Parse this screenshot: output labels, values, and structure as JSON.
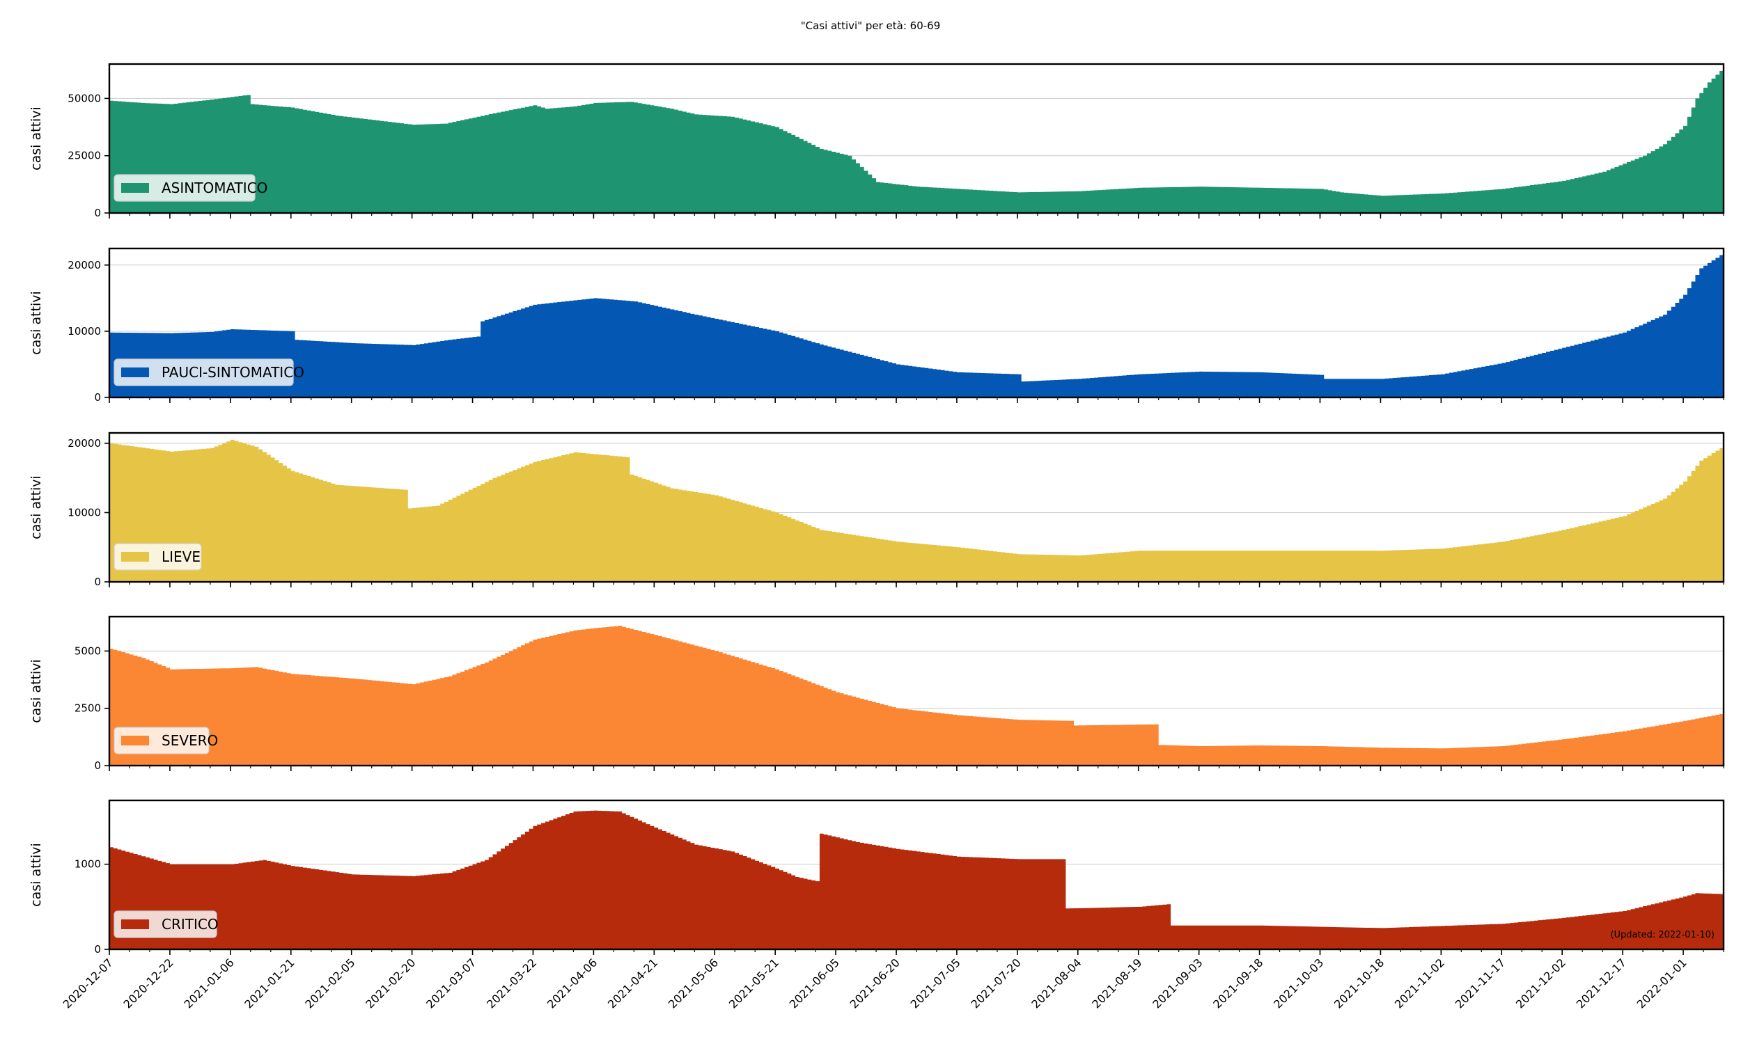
{
  "title": "\"Casi attivi\" per età: 60-69",
  "ylabel": "casi attivi",
  "updated": "(Updated: 2022-01-10)",
  "x_tick_labels": [
    "2020-12-07",
    "2020-12-22",
    "2021-01-06",
    "2021-01-21",
    "2021-02-05",
    "2021-02-20",
    "2021-03-07",
    "2021-03-22",
    "2021-04-06",
    "2021-04-21",
    "2021-05-06",
    "2021-05-21",
    "2021-06-05",
    "2021-06-20",
    "2021-07-05",
    "2021-07-20",
    "2021-08-04",
    "2021-08-19",
    "2021-09-03",
    "2021-09-18",
    "2021-10-03",
    "2021-10-18",
    "2021-11-02",
    "2021-11-17",
    "2021-12-02",
    "2021-12-17",
    "2022-01-01"
  ],
  "chart_data": [
    {
      "type": "area",
      "step": true,
      "x_start": "2020-12-07",
      "x_end": "2022-01-10",
      "name": "ASINTOMATICO",
      "color": "#1e9470",
      "ylim": [
        0,
        65000
      ],
      "yticks": [
        0,
        25000,
        50000
      ],
      "grid": true,
      "legend": "lower-left",
      "points": [
        [
          "2020-12-07",
          49000
        ],
        [
          "2020-12-15",
          48000
        ],
        [
          "2020-12-22",
          47500
        ],
        [
          "2021-01-01",
          49500
        ],
        [
          "2021-01-10",
          51500
        ],
        [
          "2021-01-11",
          47500
        ],
        [
          "2021-01-21",
          46000
        ],
        [
          "2021-02-01",
          42500
        ],
        [
          "2021-02-20",
          38500
        ],
        [
          "2021-02-28",
          39000
        ],
        [
          "2021-03-12",
          43500
        ],
        [
          "2021-03-22",
          47000
        ],
        [
          "2021-03-25",
          45500
        ],
        [
          "2021-04-01",
          46500
        ],
        [
          "2021-04-06",
          48000
        ],
        [
          "2021-04-15",
          48500
        ],
        [
          "2021-04-25",
          45500
        ],
        [
          "2021-05-01",
          43000
        ],
        [
          "2021-05-10",
          42000
        ],
        [
          "2021-05-21",
          37500
        ],
        [
          "2021-06-01",
          28000
        ],
        [
          "2021-06-08",
          25000
        ],
        [
          "2021-06-15",
          13500
        ],
        [
          "2021-06-25",
          11500
        ],
        [
          "2021-07-05",
          10500
        ],
        [
          "2021-07-20",
          9000
        ],
        [
          "2021-08-04",
          9500
        ],
        [
          "2021-08-19",
          11000
        ],
        [
          "2021-09-03",
          11500
        ],
        [
          "2021-09-18",
          11000
        ],
        [
          "2021-10-03",
          10500
        ],
        [
          "2021-10-08",
          9000
        ],
        [
          "2021-10-18",
          7500
        ],
        [
          "2021-11-02",
          8500
        ],
        [
          "2021-11-17",
          10500
        ],
        [
          "2021-12-02",
          14000
        ],
        [
          "2021-12-12",
          18000
        ],
        [
          "2021-12-22",
          25000
        ],
        [
          "2021-12-27",
          30000
        ],
        [
          "2022-01-01",
          38000
        ],
        [
          "2022-01-04",
          50000
        ],
        [
          "2022-01-07",
          57000
        ],
        [
          "2022-01-10",
          62000
        ]
      ]
    },
    {
      "type": "area",
      "step": true,
      "x_start": "2020-12-07",
      "x_end": "2022-01-10",
      "name": "PAUCI-SINTOMATICO",
      "color": "#0457b3",
      "ylim": [
        0,
        22500
      ],
      "yticks": [
        0,
        10000,
        20000
      ],
      "grid": true,
      "legend": "lower-left",
      "points": [
        [
          "2020-12-07",
          9800
        ],
        [
          "2020-12-22",
          9700
        ],
        [
          "2021-01-01",
          9900
        ],
        [
          "2021-01-06",
          10300
        ],
        [
          "2021-01-21",
          10000
        ],
        [
          "2021-01-22",
          8700
        ],
        [
          "2021-02-05",
          8200
        ],
        [
          "2021-02-20",
          7900
        ],
        [
          "2021-03-01",
          8700
        ],
        [
          "2021-03-08",
          9200
        ],
        [
          "2021-03-09",
          11500
        ],
        [
          "2021-03-22",
          14000
        ],
        [
          "2021-04-06",
          15000
        ],
        [
          "2021-04-16",
          14500
        ],
        [
          "2021-05-01",
          12500
        ],
        [
          "2021-05-21",
          10000
        ],
        [
          "2021-06-01",
          8000
        ],
        [
          "2021-06-20",
          5000
        ],
        [
          "2021-07-05",
          3800
        ],
        [
          "2021-07-20",
          3500
        ],
        [
          "2021-07-21",
          2400
        ],
        [
          "2021-08-04",
          2800
        ],
        [
          "2021-08-19",
          3500
        ],
        [
          "2021-09-03",
          3900
        ],
        [
          "2021-09-18",
          3800
        ],
        [
          "2021-10-03",
          3400
        ],
        [
          "2021-10-04",
          2800
        ],
        [
          "2021-10-18",
          2800
        ],
        [
          "2021-11-02",
          3500
        ],
        [
          "2021-11-17",
          5200
        ],
        [
          "2021-12-02",
          7500
        ],
        [
          "2021-12-17",
          9800
        ],
        [
          "2021-12-27",
          12500
        ],
        [
          "2022-01-01",
          15500
        ],
        [
          "2022-01-05",
          19500
        ],
        [
          "2022-01-10",
          21500
        ]
      ]
    },
    {
      "type": "area",
      "step": true,
      "x_start": "2020-12-07",
      "x_end": "2022-01-10",
      "name": "LIEVE",
      "color": "#e6c446",
      "ylim": [
        0,
        21500
      ],
      "yticks": [
        0,
        10000,
        20000
      ],
      "grid": true,
      "legend": "lower-left",
      "points": [
        [
          "2020-12-07",
          20000
        ],
        [
          "2020-12-22",
          18800
        ],
        [
          "2021-01-01",
          19300
        ],
        [
          "2021-01-06",
          20500
        ],
        [
          "2021-01-12",
          19500
        ],
        [
          "2021-01-21",
          16000
        ],
        [
          "2021-02-01",
          14000
        ],
        [
          "2021-02-18",
          13300
        ],
        [
          "2021-02-19",
          10600
        ],
        [
          "2021-02-26",
          11000
        ],
        [
          "2021-03-12",
          15000
        ],
        [
          "2021-03-22",
          17300
        ],
        [
          "2021-04-01",
          18700
        ],
        [
          "2021-04-14",
          18000
        ],
        [
          "2021-04-15",
          15500
        ],
        [
          "2021-04-25",
          13500
        ],
        [
          "2021-05-06",
          12500
        ],
        [
          "2021-05-21",
          10000
        ],
        [
          "2021-06-01",
          7500
        ],
        [
          "2021-06-20",
          5800
        ],
        [
          "2021-07-05",
          5000
        ],
        [
          "2021-07-20",
          4000
        ],
        [
          "2021-08-04",
          3800
        ],
        [
          "2021-08-19",
          4500
        ],
        [
          "2021-09-03",
          4500
        ],
        [
          "2021-09-18",
          4500
        ],
        [
          "2021-10-03",
          4500
        ],
        [
          "2021-10-18",
          4500
        ],
        [
          "2021-11-02",
          4800
        ],
        [
          "2021-11-17",
          5800
        ],
        [
          "2021-12-02",
          7500
        ],
        [
          "2021-12-17",
          9500
        ],
        [
          "2021-12-27",
          12000
        ],
        [
          "2022-01-01",
          14500
        ],
        [
          "2022-01-05",
          17500
        ],
        [
          "2022-01-10",
          19300
        ]
      ]
    },
    {
      "type": "area",
      "step": true,
      "x_start": "2020-12-07",
      "x_end": "2022-01-10",
      "name": "SEVERO",
      "color": "#fb8634",
      "ylim": [
        0,
        6500
      ],
      "yticks": [
        0,
        2500,
        5000
      ],
      "grid": true,
      "legend": "lower-left",
      "points": [
        [
          "2020-12-07",
          5100
        ],
        [
          "2020-12-15",
          4700
        ],
        [
          "2020-12-22",
          4200
        ],
        [
          "2021-01-06",
          4250
        ],
        [
          "2021-01-12",
          4300
        ],
        [
          "2021-01-21",
          4000
        ],
        [
          "2021-02-05",
          3800
        ],
        [
          "2021-02-20",
          3550
        ],
        [
          "2021-03-01",
          3900
        ],
        [
          "2021-03-10",
          4500
        ],
        [
          "2021-03-22",
          5500
        ],
        [
          "2021-04-01",
          5900
        ],
        [
          "2021-04-06",
          6000
        ],
        [
          "2021-04-12",
          6100
        ],
        [
          "2021-04-21",
          5700
        ],
        [
          "2021-05-06",
          5000
        ],
        [
          "2021-05-21",
          4200
        ],
        [
          "2021-06-05",
          3200
        ],
        [
          "2021-06-20",
          2500
        ],
        [
          "2021-07-05",
          2200
        ],
        [
          "2021-07-20",
          2000
        ],
        [
          "2021-08-02",
          1950
        ],
        [
          "2021-08-03",
          1750
        ],
        [
          "2021-08-23",
          1800
        ],
        [
          "2021-08-24",
          900
        ],
        [
          "2021-09-03",
          850
        ],
        [
          "2021-09-18",
          880
        ],
        [
          "2021-10-03",
          850
        ],
        [
          "2021-10-18",
          780
        ],
        [
          "2021-11-02",
          750
        ],
        [
          "2021-11-17",
          850
        ],
        [
          "2021-12-02",
          1150
        ],
        [
          "2021-12-17",
          1500
        ],
        [
          "2022-01-01",
          1950
        ],
        [
          "2022-01-10",
          2250
        ]
      ]
    },
    {
      "type": "area",
      "step": true,
      "x_start": "2020-12-07",
      "x_end": "2022-01-10",
      "name": "CRITICO",
      "color": "#b72b0d",
      "ylim": [
        0,
        1750
      ],
      "yticks": [
        0,
        1000
      ],
      "grid": true,
      "legend": "lower-left",
      "points": [
        [
          "2020-12-07",
          1200
        ],
        [
          "2020-12-22",
          1000
        ],
        [
          "2021-01-06",
          1000
        ],
        [
          "2021-01-14",
          1050
        ],
        [
          "2021-01-21",
          980
        ],
        [
          "2021-02-05",
          880
        ],
        [
          "2021-02-20",
          860
        ],
        [
          "2021-03-01",
          900
        ],
        [
          "2021-03-10",
          1050
        ],
        [
          "2021-03-22",
          1450
        ],
        [
          "2021-04-01",
          1620
        ],
        [
          "2021-04-06",
          1630
        ],
        [
          "2021-04-12",
          1620
        ],
        [
          "2021-04-20",
          1450
        ],
        [
          "2021-05-01",
          1230
        ],
        [
          "2021-05-10",
          1150
        ],
        [
          "2021-05-21",
          950
        ],
        [
          "2021-05-26",
          850
        ],
        [
          "2021-05-31",
          800
        ],
        [
          "2021-06-01",
          1360
        ],
        [
          "2021-06-10",
          1260
        ],
        [
          "2021-06-20",
          1180
        ],
        [
          "2021-07-05",
          1090
        ],
        [
          "2021-07-20",
          1060
        ],
        [
          "2021-07-31",
          1060
        ],
        [
          "2021-08-01",
          480
        ],
        [
          "2021-08-19",
          500
        ],
        [
          "2021-08-26",
          530
        ],
        [
          "2021-08-27",
          280
        ],
        [
          "2021-09-18",
          280
        ],
        [
          "2021-10-18",
          250
        ],
        [
          "2021-11-17",
          300
        ],
        [
          "2021-12-02",
          370
        ],
        [
          "2021-12-17",
          450
        ],
        [
          "2022-01-01",
          620
        ],
        [
          "2022-01-04",
          660
        ],
        [
          "2022-01-10",
          650
        ]
      ]
    }
  ]
}
